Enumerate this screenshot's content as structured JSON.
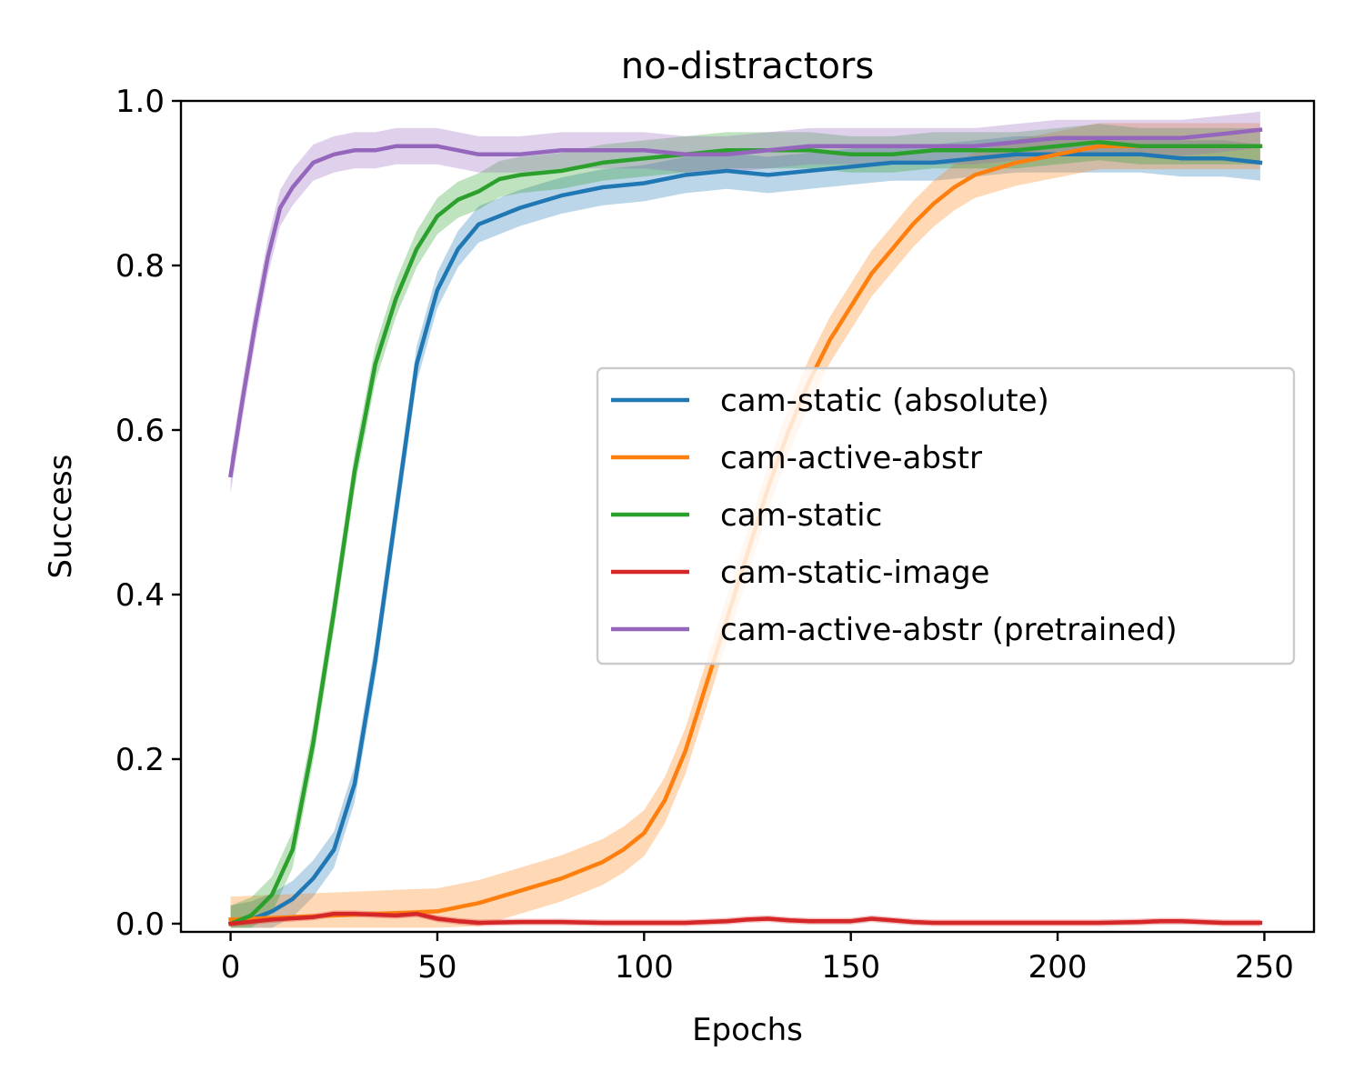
{
  "chart_data": {
    "type": "line",
    "title": "no-distractors",
    "xlabel": "Epochs",
    "ylabel": "Success",
    "xlim": [
      -12,
      262
    ],
    "ylim": [
      -0.01,
      1.0
    ],
    "xticks": [
      0,
      50,
      100,
      150,
      200,
      250
    ],
    "xtick_labels": [
      "0",
      "50",
      "100",
      "150",
      "200",
      "250"
    ],
    "yticks": [
      0.0,
      0.2,
      0.4,
      0.6,
      0.8,
      1.0
    ],
    "ytick_labels": [
      "0.0",
      "0.2",
      "0.4",
      "0.6",
      "0.8",
      "1.0"
    ],
    "legend_position": "center-right",
    "series": [
      {
        "name": "cam-static (absolute)",
        "color": "#1f77b4",
        "x": [
          0,
          5,
          10,
          15,
          20,
          25,
          30,
          35,
          40,
          45,
          50,
          55,
          60,
          65,
          70,
          80,
          90,
          100,
          110,
          120,
          130,
          140,
          150,
          160,
          170,
          180,
          190,
          200,
          210,
          220,
          230,
          240,
          249
        ],
        "values": [
          0.0,
          0.005,
          0.015,
          0.03,
          0.055,
          0.09,
          0.17,
          0.32,
          0.5,
          0.68,
          0.77,
          0.82,
          0.85,
          0.86,
          0.87,
          0.885,
          0.895,
          0.9,
          0.91,
          0.915,
          0.91,
          0.915,
          0.92,
          0.925,
          0.925,
          0.93,
          0.935,
          0.935,
          0.935,
          0.935,
          0.93,
          0.93,
          0.925
        ],
        "band": 0.022
      },
      {
        "name": "cam-active-abstr",
        "color": "#ff7f0e",
        "x": [
          0,
          10,
          20,
          30,
          40,
          50,
          60,
          70,
          80,
          90,
          95,
          100,
          105,
          110,
          115,
          120,
          125,
          130,
          135,
          140,
          145,
          150,
          155,
          160,
          165,
          170,
          175,
          180,
          190,
          200,
          210,
          220,
          230,
          240,
          249
        ],
        "values": [
          0.005,
          0.007,
          0.009,
          0.011,
          0.013,
          0.015,
          0.025,
          0.04,
          0.055,
          0.075,
          0.09,
          0.11,
          0.15,
          0.21,
          0.29,
          0.37,
          0.45,
          0.53,
          0.6,
          0.66,
          0.71,
          0.75,
          0.79,
          0.82,
          0.85,
          0.875,
          0.895,
          0.91,
          0.925,
          0.935,
          0.945,
          0.945,
          0.945,
          0.945,
          0.945
        ],
        "band": 0.028
      },
      {
        "name": "cam-static",
        "color": "#2ca02c",
        "x": [
          0,
          5,
          10,
          15,
          20,
          25,
          30,
          35,
          40,
          45,
          50,
          55,
          60,
          65,
          70,
          80,
          90,
          100,
          110,
          120,
          130,
          140,
          150,
          160,
          170,
          180,
          190,
          200,
          210,
          220,
          230,
          240,
          249
        ],
        "values": [
          0.0,
          0.01,
          0.035,
          0.09,
          0.22,
          0.38,
          0.55,
          0.68,
          0.76,
          0.82,
          0.86,
          0.88,
          0.89,
          0.905,
          0.91,
          0.915,
          0.925,
          0.93,
          0.935,
          0.94,
          0.94,
          0.94,
          0.935,
          0.935,
          0.94,
          0.94,
          0.94,
          0.945,
          0.95,
          0.945,
          0.945,
          0.945,
          0.945
        ],
        "band": 0.022
      },
      {
        "name": "cam-static-image",
        "color": "#d62728",
        "x": [
          0,
          10,
          20,
          25,
          30,
          40,
          45,
          50,
          55,
          60,
          70,
          80,
          90,
          100,
          110,
          120,
          125,
          130,
          135,
          140,
          150,
          155,
          160,
          165,
          170,
          180,
          190,
          200,
          210,
          220,
          225,
          230,
          235,
          240,
          249
        ],
        "values": [
          0.0,
          0.005,
          0.008,
          0.012,
          0.012,
          0.01,
          0.012,
          0.006,
          0.003,
          0.001,
          0.002,
          0.002,
          0.001,
          0.001,
          0.001,
          0.003,
          0.005,
          0.006,
          0.004,
          0.003,
          0.003,
          0.006,
          0.004,
          0.002,
          0.001,
          0.001,
          0.001,
          0.001,
          0.001,
          0.002,
          0.003,
          0.003,
          0.002,
          0.001,
          0.001
        ],
        "band": 0.004
      },
      {
        "name": "cam-active-abstr (pretrained)",
        "color": "#9467bd",
        "x": [
          0,
          3,
          6,
          9,
          12,
          15,
          20,
          25,
          30,
          35,
          40,
          45,
          50,
          60,
          70,
          80,
          90,
          100,
          110,
          120,
          130,
          140,
          150,
          160,
          170,
          180,
          190,
          200,
          210,
          220,
          230,
          240,
          249
        ],
        "values": [
          0.545,
          0.64,
          0.73,
          0.81,
          0.87,
          0.895,
          0.925,
          0.935,
          0.94,
          0.94,
          0.945,
          0.945,
          0.945,
          0.935,
          0.935,
          0.94,
          0.94,
          0.94,
          0.935,
          0.935,
          0.94,
          0.945,
          0.945,
          0.945,
          0.945,
          0.945,
          0.95,
          0.955,
          0.955,
          0.955,
          0.955,
          0.96,
          0.965
        ],
        "band": 0.022
      }
    ]
  }
}
